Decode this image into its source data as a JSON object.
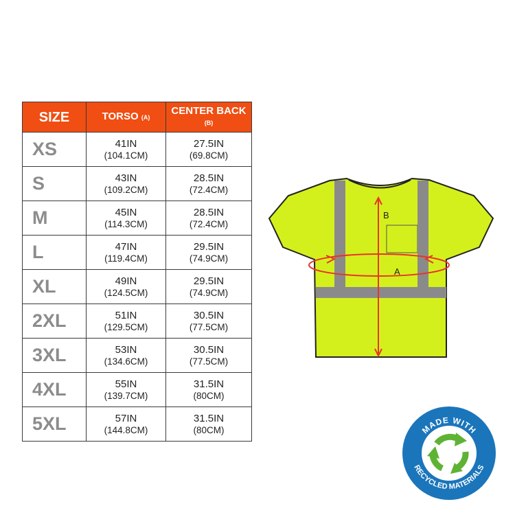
{
  "table": {
    "headers": [
      {
        "label": "SIZE",
        "sub": ""
      },
      {
        "label": "TORSO",
        "sub": "(A)"
      },
      {
        "label": "CENTER BACK",
        "sub": "(B)"
      }
    ],
    "rows": [
      {
        "size": "XS",
        "torso_in": "41IN",
        "torso_cm": "(104.1CM)",
        "back_in": "27.5IN",
        "back_cm": "(69.8CM)"
      },
      {
        "size": "S",
        "torso_in": "43IN",
        "torso_cm": "(109.2CM)",
        "back_in": "28.5IN",
        "back_cm": "(72.4CM)"
      },
      {
        "size": "M",
        "torso_in": "45IN",
        "torso_cm": "(114.3CM)",
        "back_in": "28.5IN",
        "back_cm": "(72.4CM)"
      },
      {
        "size": "L",
        "torso_in": "47IN",
        "torso_cm": "(119.4CM)",
        "back_in": "29.5IN",
        "back_cm": "(74.9CM)"
      },
      {
        "size": "XL",
        "torso_in": "49IN",
        "torso_cm": "(124.5CM)",
        "back_in": "29.5IN",
        "back_cm": "(74.9CM)"
      },
      {
        "size": "2XL",
        "torso_in": "51IN",
        "torso_cm": "(129.5CM)",
        "back_in": "30.5IN",
        "back_cm": "(77.5CM)"
      },
      {
        "size": "3XL",
        "torso_in": "53IN",
        "torso_cm": "(134.6CM)",
        "back_in": "30.5IN",
        "back_cm": "(77.5CM)"
      },
      {
        "size": "4XL",
        "torso_in": "55IN",
        "torso_cm": "(139.7CM)",
        "back_in": "31.5IN",
        "back_cm": "(80CM)"
      },
      {
        "size": "5XL",
        "torso_in": "57IN",
        "torso_cm": "(144.8CM)",
        "back_in": "31.5IN",
        "back_cm": "(80CM)"
      }
    ]
  },
  "diagram": {
    "label_a": "A",
    "label_b": "B"
  },
  "badge": {
    "top": "MADE WITH",
    "bottom": "RECYCLED MATERIALS",
    "icon": "recycle-icon"
  },
  "colors": {
    "header": "#f04e12",
    "shirt": "#d4f01c",
    "stripe": "#8a8a8a",
    "arrow": "#e8342a",
    "badge": "#1b75bb",
    "recycle": "#5fb334"
  }
}
